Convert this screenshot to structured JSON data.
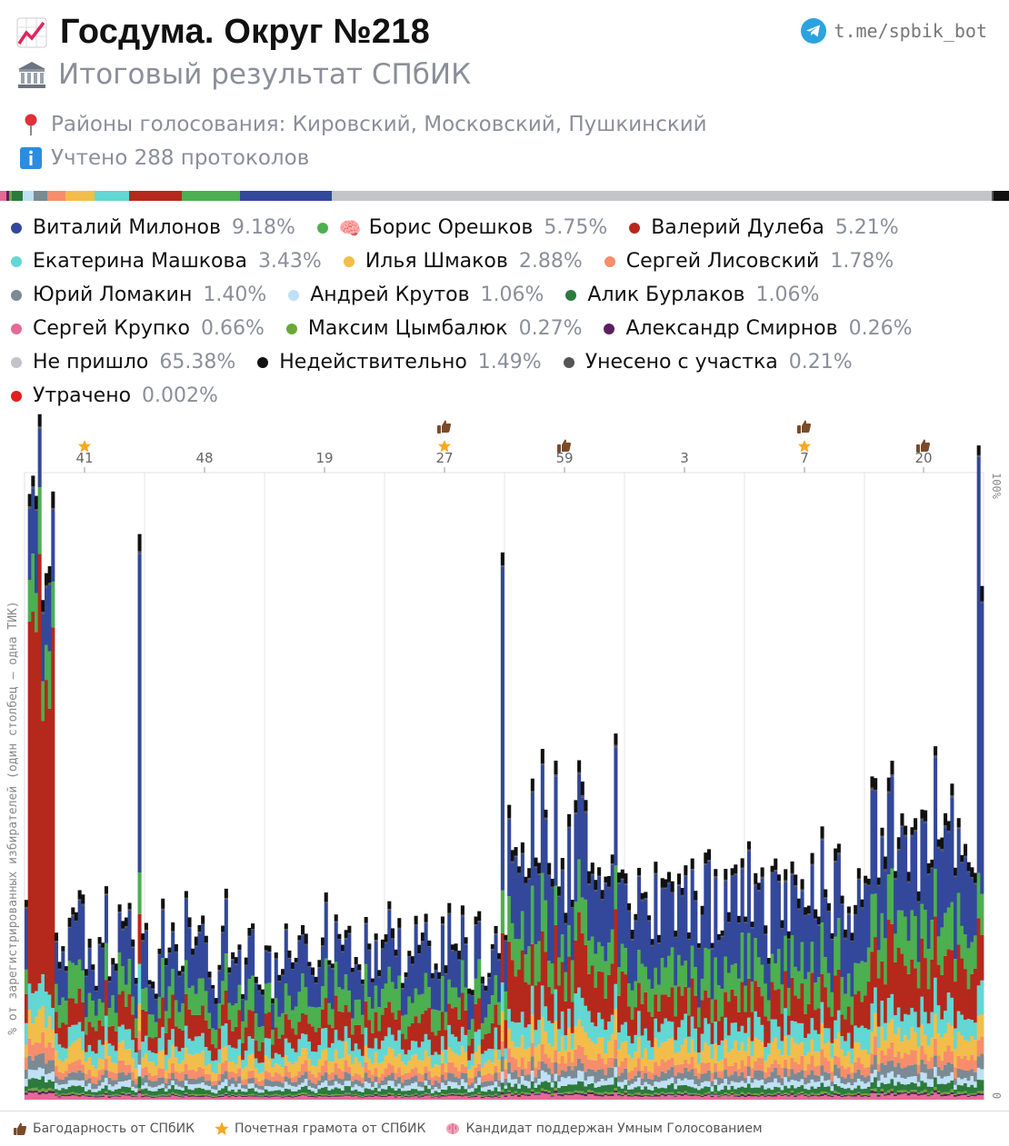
{
  "header": {
    "title": "Госдума. Округ №218",
    "subtitle": "Итоговый результат СПбИК",
    "districts": "Районы голосования: Кировский, Московский, Пушкинский",
    "protocols": "Учтено 288 протоколов",
    "bot_link": "t.me/spbik_bot"
  },
  "summary_bar": [
    {
      "color": "#e46a96",
      "value": 0.66
    },
    {
      "color": "#5b1f5e",
      "value": 0.26
    },
    {
      "color": "#6aa838",
      "value": 0.27
    },
    {
      "color": "#2c7a3c",
      "value": 1.06
    },
    {
      "color": "#bfe0f5",
      "value": 1.06
    },
    {
      "color": "#7b8a93",
      "value": 1.4
    },
    {
      "color": "#f78d6b",
      "value": 1.78
    },
    {
      "color": "#f2bd4a",
      "value": 2.88
    },
    {
      "color": "#62d7d3",
      "value": 3.43
    },
    {
      "color": "#b5281c",
      "value": 5.21
    },
    {
      "color": "#4caf50",
      "value": 5.75
    },
    {
      "color": "#33489a",
      "value": 9.18
    },
    {
      "color": "#c2c4ca",
      "value": 65.38
    },
    {
      "color": "#555555",
      "value": 0.21
    },
    {
      "color": "#111111",
      "value": 1.49
    }
  ],
  "legend": [
    [
      {
        "name": "Виталий Милонов",
        "pct": "9.18%",
        "color": "#33489a",
        "brain": false
      },
      {
        "name": "Борис Орешков",
        "pct": "5.75%",
        "color": "#4caf50",
        "brain": true
      },
      {
        "name": "Валерий Дулеба",
        "pct": "5.21%",
        "color": "#b5281c",
        "brain": false
      }
    ],
    [
      {
        "name": "Екатерина Машкова",
        "pct": "3.43%",
        "color": "#62d7d3",
        "brain": false
      },
      {
        "name": "Илья Шмаков",
        "pct": "2.88%",
        "color": "#f2bd4a",
        "brain": false
      },
      {
        "name": "Сергей Лисовский",
        "pct": "1.78%",
        "color": "#f78d6b",
        "brain": false
      }
    ],
    [
      {
        "name": "Юрий Ломакин",
        "pct": "1.40%",
        "color": "#7b8a93",
        "brain": false
      },
      {
        "name": "Андрей Крутов",
        "pct": "1.06%",
        "color": "#bfe0f5",
        "brain": false
      },
      {
        "name": "Алик Бурлаков",
        "pct": "1.06%",
        "color": "#2c7a3c",
        "brain": false
      }
    ],
    [
      {
        "name": "Сергей Крупко",
        "pct": "0.66%",
        "color": "#e46a96",
        "brain": false
      },
      {
        "name": "Максим Цымбалюк",
        "pct": "0.27%",
        "color": "#6aa838",
        "brain": false
      },
      {
        "name": "Александр Смирнов",
        "pct": "0.26%",
        "color": "#5b1f5e",
        "brain": false
      }
    ],
    [
      {
        "name": "Не пришло",
        "pct": "65.38%",
        "color": "#c2c4ca",
        "brain": false
      },
      {
        "name": "Недействительно",
        "pct": "1.49%",
        "color": "#111111",
        "brain": false
      },
      {
        "name": "Унесено с участка",
        "pct": "0.21%",
        "color": "#555555",
        "brain": false
      }
    ],
    [
      {
        "name": "Утрачено",
        "pct": "0.002%",
        "color": "#e02020",
        "brain": false
      }
    ]
  ],
  "chart_data": {
    "type": "bar",
    "stacked": true,
    "ylabel": "% от зарегистрированных избирателей (один столбец — одна ТИК)",
    "y_tick_labels": [
      "100%",
      "0"
    ],
    "ylim": [
      0,
      100
    ],
    "x_group_labels": [
      "41",
      "48",
      "19",
      "27",
      "59",
      "3",
      "7",
      "20"
    ],
    "group_markers": [
      {
        "label": "41",
        "star": true,
        "thumb": false
      },
      {
        "label": "48",
        "star": false,
        "thumb": false
      },
      {
        "label": "19",
        "star": false,
        "thumb": false
      },
      {
        "label": "27",
        "star": true,
        "thumb": true
      },
      {
        "label": "59",
        "star": false,
        "thumb": true
      },
      {
        "label": "3",
        "star": false,
        "thumb": false
      },
      {
        "label": "7",
        "star": true,
        "thumb": true
      },
      {
        "label": "20",
        "star": false,
        "thumb": true
      }
    ],
    "stack_order": [
      "Сергей Крупко",
      "Александр Смирнов",
      "Максим Цымбалюк",
      "Алик Бурлаков",
      "Андрей Крутов",
      "Юрий Ломакин",
      "Сергей Лисовский",
      "Илья Шмаков",
      "Екатерина Машкова",
      "Валерий Дулеба",
      "Борис Орешков",
      "Виталий Милонов",
      "Унесено с участка",
      "Недействительно"
    ],
    "district_typical_turnout": [
      {
        "group": "41",
        "pct": 27
      },
      {
        "group": "48",
        "pct": 24
      },
      {
        "group": "19",
        "pct": 25
      },
      {
        "group": "27",
        "pct": 25
      },
      {
        "group": "59",
        "pct": 37
      },
      {
        "group": "3",
        "pct": 30
      },
      {
        "group": "7",
        "pct": 32
      },
      {
        "group": "20",
        "pct": 38
      }
    ],
    "outlier_stations": [
      {
        "group": "41",
        "pct": 100,
        "dominant": "Валерий Дулеба"
      },
      {
        "group": "48",
        "pct": 100,
        "dominant": "Виталий Милонов"
      },
      {
        "group": "27",
        "pct": 100,
        "dominant": "Виталий Милонов"
      },
      {
        "group": "20",
        "pct": 100,
        "dominant": "Виталий Милонов"
      }
    ]
  },
  "footer": {
    "thanks": "Багодарность от СПбИК",
    "diploma": "Почетная грамота от СПбИК",
    "smart_vote": "Кандидат поддержан Умным Голосованием"
  },
  "colors": {
    "not_came": "#c2c4ca",
    "lost": "#e02020",
    "star": "#f6a821",
    "thumb": "#7b4a2a",
    "telegram": "#2aa3df"
  }
}
